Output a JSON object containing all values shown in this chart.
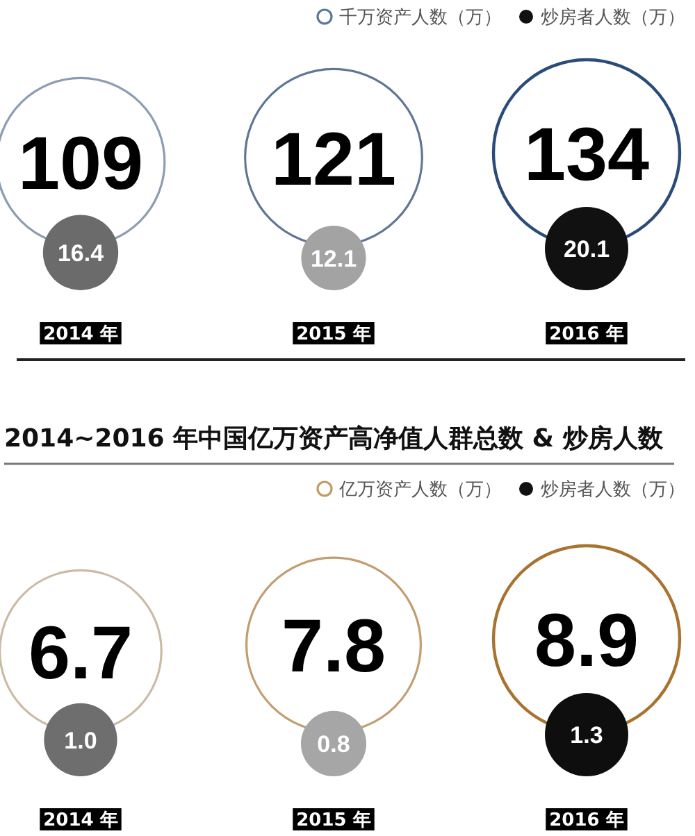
{
  "chart_data": [
    {
      "type": "other",
      "categories": [
        "2014 年",
        "2015 年",
        "2016 年"
      ],
      "series": [
        {
          "name": "千万资产人数（万）",
          "color": "#5a7898",
          "colors": [
            "#8d9cb4",
            "#5f7793",
            "#2b4c79"
          ],
          "values": [
            109,
            121,
            134
          ]
        },
        {
          "name": "炒房者人数（万）",
          "color": "#111111",
          "colors": [
            "#6b6b6b",
            "#a3a3a3",
            "#111111"
          ],
          "values": [
            16.4,
            12.1,
            20.1
          ]
        }
      ],
      "legend": "top right",
      "data_labels": true
    },
    {
      "type": "other",
      "title": "2014~2016 年中国亿万资产高净值人群总数 & 炒房人数",
      "categories": [
        "2014 年",
        "2015 年",
        "2016 年"
      ],
      "series": [
        {
          "name": "亿万资产人数（万）",
          "color": "#c39a62",
          "colors": [
            "#cbbba5",
            "#c29d70",
            "#a8722f"
          ],
          "values": [
            6.7,
            7.8,
            8.9
          ],
          "value_labels": [
            "6.7",
            "7.8",
            "8.9"
          ]
        },
        {
          "name": "炒房者人数（万）",
          "color": "#111111",
          "colors": [
            "#6e6e6e",
            "#a6a6a6",
            "#0e0e0e"
          ],
          "values": [
            1.0,
            0.8,
            1.3
          ],
          "value_labels": [
            "1.0",
            "0.8",
            "1.3"
          ]
        }
      ],
      "legend": "top right"
    }
  ]
}
